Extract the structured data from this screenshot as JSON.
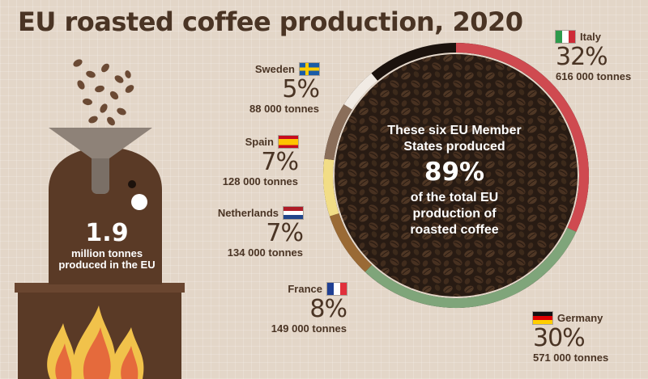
{
  "title": "EU roasted coffee production, 2020",
  "eu_total": {
    "value": "1.9",
    "line1": "million tonnes",
    "line2": "produced in the EU"
  },
  "center": {
    "line1": "These six EU Member",
    "line2": "States produced",
    "pct": "89%",
    "line3": "of the total EU",
    "line4": "production of",
    "line5": "roasted coffee"
  },
  "countries": [
    {
      "name": "Italy",
      "pct": "32%",
      "tonnes": "616 000 tonnes"
    },
    {
      "name": "Germany",
      "pct": "30%",
      "tonnes": "571 000 tonnes"
    },
    {
      "name": "France",
      "pct": "8%",
      "tonnes": "149 000 tonnes"
    },
    {
      "name": "Netherlands",
      "pct": "7%",
      "tonnes": "134 000 tonnes"
    },
    {
      "name": "Spain",
      "pct": "7%",
      "tonnes": "128 000 tonnes"
    },
    {
      "name": "Sweden",
      "pct": "5%",
      "tonnes": "88 000 tonnes"
    }
  ],
  "colors": {
    "italy": "#cf4a50",
    "germany": "#7fa57a",
    "france": "#9a6a35",
    "netherlands": "#f2dd86",
    "spain": "#8a6e5a",
    "sweden": "#f1ebe4",
    "others": "#1b120d",
    "brown_dark": "#4a3424",
    "stove": "#5a3a26",
    "funnel": "#8e8278"
  },
  "chart_data": {
    "type": "pie",
    "title": "EU roasted coffee production, 2020",
    "categories": [
      "Italy",
      "Germany",
      "France",
      "Netherlands",
      "Spain",
      "Sweden"
    ],
    "values": [
      32,
      30,
      8,
      7,
      7,
      5
    ],
    "tonnes": [
      616000,
      571000,
      149000,
      134000,
      128000,
      88000
    ],
    "total_share_of_six": 89,
    "eu_total_million_tonnes": 1.9,
    "start_angle_deg": 0,
    "direction": "clockwise",
    "legend": "none"
  }
}
